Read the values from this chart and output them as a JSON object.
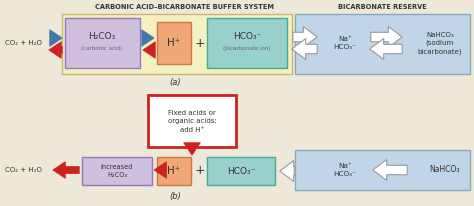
{
  "fig_bg": "#ede8d8",
  "box_yellow_bg": "#f5f0c0",
  "box_yellow_ec": "#c8b870",
  "box_blue_bg": "#c0d5e8",
  "box_blue_ec": "#8aaabb",
  "box_carbonic_bg": "#d0c0e0",
  "box_carbonic_ec": "#9977bb",
  "box_hplus_bg": "#f0a878",
  "box_hplus_ec": "#cc7744",
  "box_hco3_bg": "#98d0cc",
  "box_hco3_ec": "#44aa99",
  "box_fixed_bg": "#ffffff",
  "box_fixed_ec": "#cc2222",
  "arrow_blue": "#4477aa",
  "arrow_red": "#cc2222",
  "arrow_white_fc": "#ffffff",
  "arrow_white_ec": "#999999",
  "text_dark": "#333333",
  "text_gray": "#666666",
  "title_a": "CARBONIC ACID–BICARBONATE BUFFER SYSTEM",
  "title_b": "BICARBONATE RESERVE",
  "label_a": "(a)",
  "label_b": "(b)",
  "co2_text": "CO₂ + H₂O",
  "carbonic_line1": "H₂CO₃",
  "carbonic_line2": "(carbonic acid)",
  "hplus_text": "H⁺",
  "hco3_line1": "HCO₃⁻",
  "hco3_line2": "(bicarbonate ion)",
  "na_hco3_left_a": "Na⁺\nHCO₃⁻",
  "nahco3_right_a": "NaHCO₃\n(sodium\nbicarbonate)",
  "fixed_acids": "Fixed acids or\norganic acids:\nadd H⁺",
  "increased_h2co3": "Increased\nH₂CO₃",
  "hplus2": "H⁺",
  "hco32": "HCO₃⁻",
  "na_hco3_b": "Na⁺\nHCO₃⁻",
  "nahco3_b": "NaHCO₃"
}
